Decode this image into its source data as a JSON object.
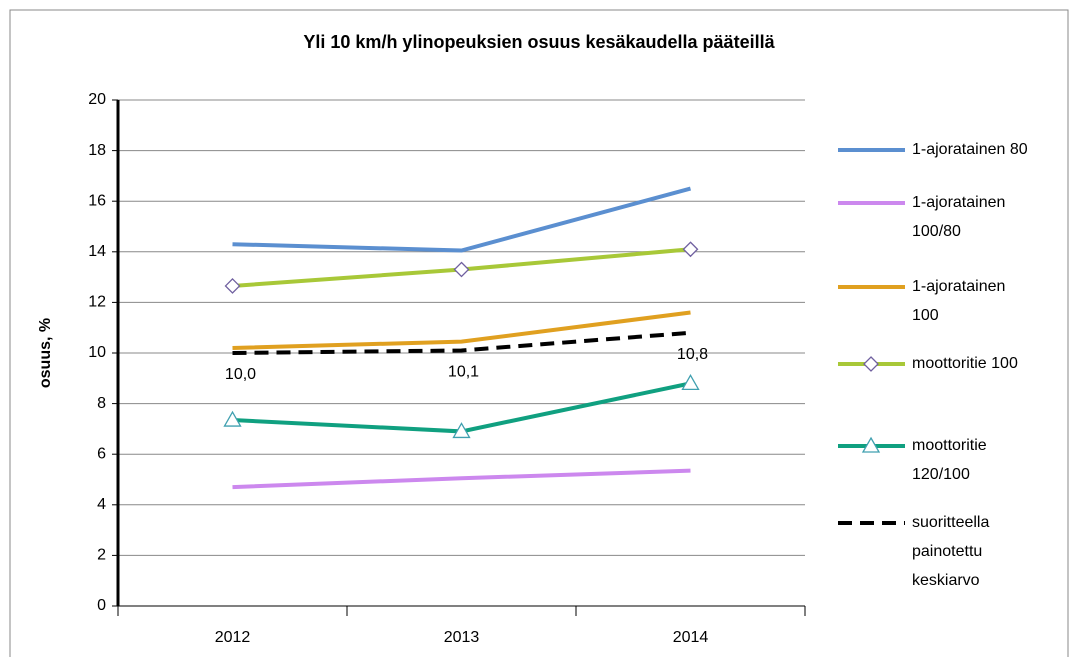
{
  "chart_data": {
    "type": "line",
    "title": "Yli 10 km/h ylinopeuksien osuus kesäkaudella pääteillä",
    "y_label": "osuus, %",
    "categories": [
      "2012",
      "2013",
      "2014"
    ],
    "ylim": [
      0,
      20
    ],
    "yticks": [
      0,
      2,
      4,
      6,
      8,
      10,
      12,
      14,
      16,
      18,
      20
    ],
    "grid": true,
    "series": [
      {
        "name": "1-ajoratainen 80",
        "color": "#5b8fd0",
        "values": [
          14.3,
          14.05,
          16.5
        ]
      },
      {
        "name": "1-ajoratainen 100/80",
        "color": "#cc88ee",
        "values": [
          4.7,
          5.05,
          5.35
        ]
      },
      {
        "name": "1-ajoratainen 100",
        "color": "#e0a020",
        "values": [
          10.2,
          10.45,
          11.6
        ]
      },
      {
        "name": "moottoritie 100",
        "color": "#a8c838",
        "marker": "diamond",
        "values": [
          12.65,
          13.3,
          14.1
        ]
      },
      {
        "name": "moottoritie 120/100",
        "color": "#10a080",
        "marker": "triangle",
        "values": [
          7.35,
          6.9,
          8.8
        ]
      },
      {
        "name": "suoritteella painotettu keskiarvo",
        "color": "#000000",
        "dash": true,
        "values": [
          10.0,
          10.1,
          10.8
        ],
        "value_labels": [
          "10,0",
          "10,1",
          "10,8"
        ]
      }
    ]
  }
}
